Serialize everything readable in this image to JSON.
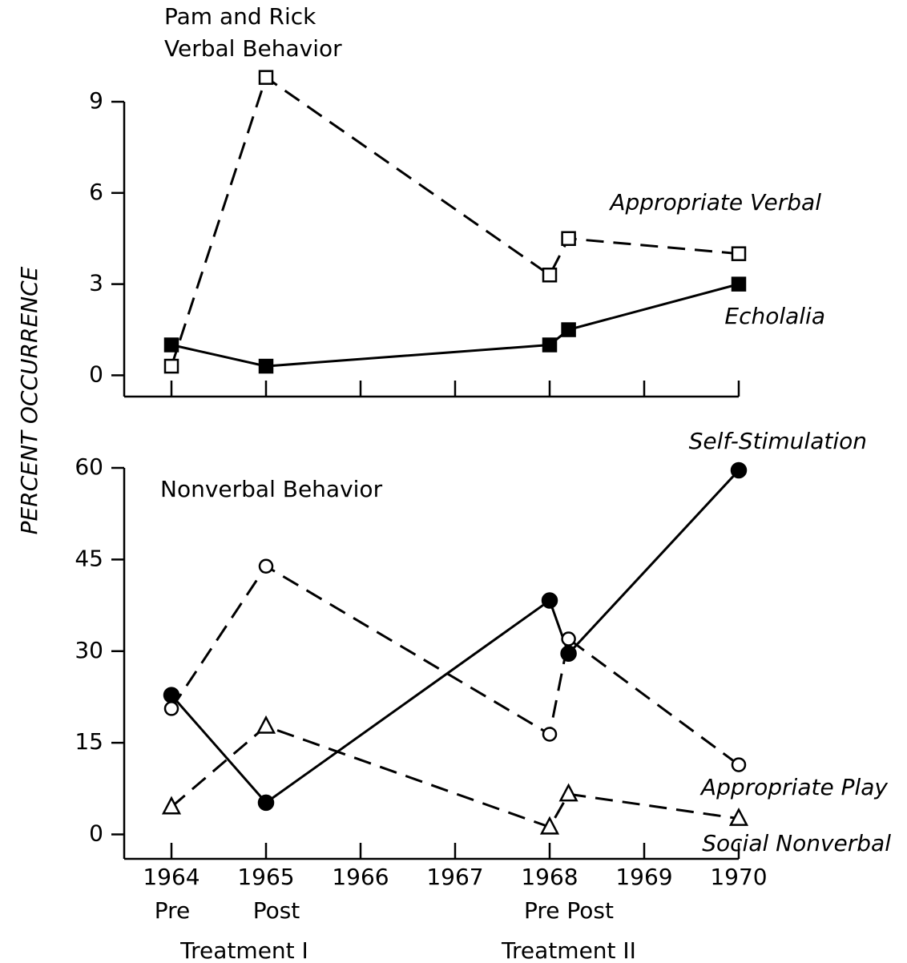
{
  "ylabel": "PERCENT OCCURRENCE",
  "chart_data": [
    {
      "type": "line",
      "title": [
        "Pam and Rick",
        "Verbal Behavior"
      ],
      "x": [
        1964,
        1965,
        1968,
        1968.2,
        1970
      ],
      "xlim": [
        1963.5,
        1970
      ],
      "xticks": [
        1964,
        1965,
        1966,
        1967,
        1968,
        1969,
        1970
      ],
      "ylim": [
        -0.7,
        9
      ],
      "yticks": [
        0,
        3,
        6,
        9
      ],
      "series": [
        {
          "name": "Appropriate Verbal",
          "color": "#000",
          "dash": true,
          "marker": "square-open",
          "values": [
            0.3,
            9.8,
            3.3,
            4.5,
            4.0
          ]
        },
        {
          "name": "Echolalia",
          "color": "#000",
          "dash": false,
          "marker": "square-filled",
          "values": [
            1.0,
            0.3,
            1.0,
            1.5,
            3.0
          ]
        }
      ]
    },
    {
      "type": "line",
      "title": [
        "Nonverbal Behavior"
      ],
      "x": [
        1964,
        1965,
        1968,
        1968.2,
        1970
      ],
      "xlim": [
        1963.5,
        1970
      ],
      "xticks": [
        1964,
        1965,
        1966,
        1967,
        1968,
        1969,
        1970
      ],
      "ylim": [
        -4,
        60
      ],
      "yticks": [
        0,
        15,
        30,
        45,
        60
      ],
      "series": [
        {
          "name": "Self-Stimulation",
          "color": "#000",
          "dash": false,
          "marker": "circle-filled",
          "values": [
            22.8,
            5.2,
            38.3,
            29.6,
            59.6
          ]
        },
        {
          "name": "Appropriate Play",
          "color": "#000",
          "dash": true,
          "marker": "circle-open",
          "values": [
            20.6,
            43.9,
            16.4,
            32,
            11.4
          ]
        },
        {
          "name": "Social Nonverbal",
          "color": "#000",
          "dash": true,
          "marker": "triangle-open",
          "values": [
            4.5,
            17.7,
            1.2,
            6.6,
            2.6
          ]
        }
      ],
      "annotations": [
        "Pre",
        "Post",
        "Pre Post",
        "Treatment I",
        "Treatment II"
      ]
    }
  ]
}
